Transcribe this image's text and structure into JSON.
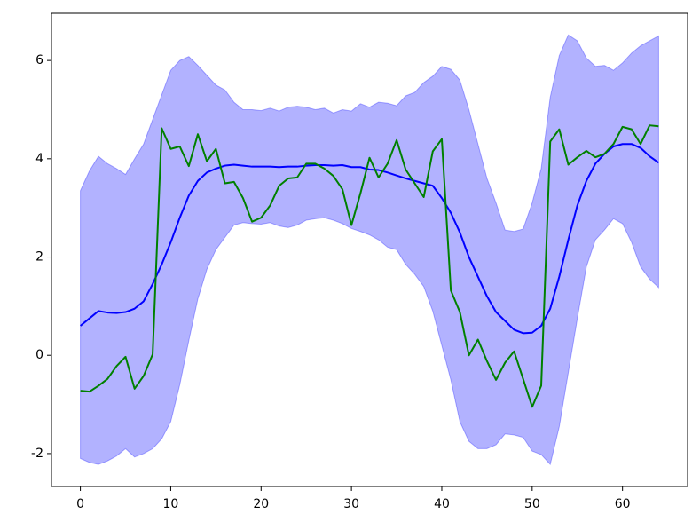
{
  "chart_data": {
    "type": "line",
    "x": [
      0,
      1,
      2,
      3,
      4,
      5,
      6,
      7,
      8,
      9,
      10,
      11,
      12,
      13,
      14,
      15,
      16,
      17,
      18,
      19,
      20,
      21,
      22,
      23,
      24,
      25,
      26,
      27,
      28,
      29,
      30,
      31,
      32,
      33,
      34,
      35,
      36,
      37,
      38,
      39,
      40,
      41,
      42,
      43,
      44,
      45,
      46,
      47,
      48,
      49,
      50,
      51,
      52,
      53,
      54,
      55,
      56,
      57,
      58,
      59,
      60,
      61,
      62,
      63,
      64
    ],
    "band": {
      "color": "#0000ff",
      "upper": [
        3.35,
        3.75,
        4.05,
        3.9,
        3.8,
        3.68,
        4.0,
        4.3,
        4.8,
        5.3,
        5.8,
        6.0,
        6.08,
        5.9,
        5.7,
        5.5,
        5.4,
        5.15,
        5.0,
        5.0,
        4.98,
        5.03,
        4.97,
        5.05,
        5.07,
        5.05,
        5.0,
        5.03,
        4.93,
        5.0,
        4.97,
        5.12,
        5.05,
        5.15,
        5.13,
        5.08,
        5.28,
        5.35,
        5.55,
        5.68,
        5.88,
        5.82,
        5.6,
        5.0,
        4.3,
        3.6,
        3.1,
        2.55,
        2.52,
        2.57,
        3.1,
        3.8,
        5.25,
        6.1,
        6.52,
        6.4,
        6.05,
        5.88,
        5.9,
        5.8,
        5.95,
        6.15,
        6.3,
        6.4,
        6.5
      ],
      "lower": [
        -2.1,
        -2.18,
        -2.22,
        -2.15,
        -2.05,
        -1.9,
        -2.07,
        -2.0,
        -1.9,
        -1.7,
        -1.35,
        -0.6,
        0.3,
        1.15,
        1.75,
        2.15,
        2.4,
        2.65,
        2.7,
        2.68,
        2.67,
        2.7,
        2.63,
        2.6,
        2.65,
        2.75,
        2.78,
        2.8,
        2.75,
        2.68,
        2.58,
        2.52,
        2.45,
        2.35,
        2.2,
        2.15,
        1.85,
        1.65,
        1.4,
        0.9,
        0.2,
        -0.5,
        -1.35,
        -1.75,
        -1.9,
        -1.9,
        -1.82,
        -1.6,
        -1.62,
        -1.67,
        -1.95,
        -2.02,
        -2.22,
        -1.45,
        -0.35,
        0.75,
        1.8,
        2.35,
        2.55,
        2.78,
        2.68,
        2.3,
        1.8,
        1.55,
        1.38
      ]
    },
    "series": [
      {
        "color": "#0000ff",
        "values": [
          0.6,
          0.75,
          0.9,
          0.87,
          0.86,
          0.88,
          0.95,
          1.1,
          1.45,
          1.85,
          2.3,
          2.8,
          3.25,
          3.55,
          3.72,
          3.8,
          3.86,
          3.88,
          3.86,
          3.84,
          3.84,
          3.84,
          3.83,
          3.84,
          3.84,
          3.86,
          3.87,
          3.87,
          3.86,
          3.87,
          3.83,
          3.83,
          3.78,
          3.77,
          3.72,
          3.66,
          3.6,
          3.55,
          3.5,
          3.45,
          3.2,
          2.9,
          2.5,
          2.0,
          1.6,
          1.2,
          0.88,
          0.7,
          0.52,
          0.45,
          0.46,
          0.6,
          0.95,
          1.6,
          2.35,
          3.05,
          3.55,
          3.9,
          4.1,
          4.25,
          4.3,
          4.3,
          4.22,
          4.05,
          3.92
        ]
      },
      {
        "color": "#008000",
        "values": [
          -0.72,
          -0.74,
          -0.62,
          -0.48,
          -0.22,
          -0.03,
          -0.68,
          -0.42,
          0.02,
          4.62,
          4.2,
          4.25,
          3.85,
          4.5,
          3.95,
          4.2,
          3.5,
          3.53,
          3.2,
          2.72,
          2.8,
          3.05,
          3.45,
          3.6,
          3.62,
          3.9,
          3.9,
          3.8,
          3.65,
          3.38,
          2.65,
          3.3,
          4.02,
          3.62,
          3.9,
          4.38,
          3.78,
          3.5,
          3.22,
          4.15,
          4.4,
          1.32,
          0.88,
          0.0,
          0.32,
          -0.12,
          -0.5,
          -0.15,
          0.08,
          -0.48,
          -1.05,
          -0.62,
          4.35,
          4.6,
          3.88,
          4.03,
          4.16,
          4.03,
          4.1,
          4.3,
          4.65,
          4.6,
          4.3,
          4.68,
          4.66
        ]
      }
    ],
    "xlim": [
      -3.2,
      67.2
    ],
    "ylim": [
      -2.67,
      6.96
    ],
    "xticks": [
      0,
      10,
      20,
      30,
      40,
      50,
      60
    ],
    "yticks": [
      -2,
      0,
      2,
      4,
      6
    ]
  }
}
